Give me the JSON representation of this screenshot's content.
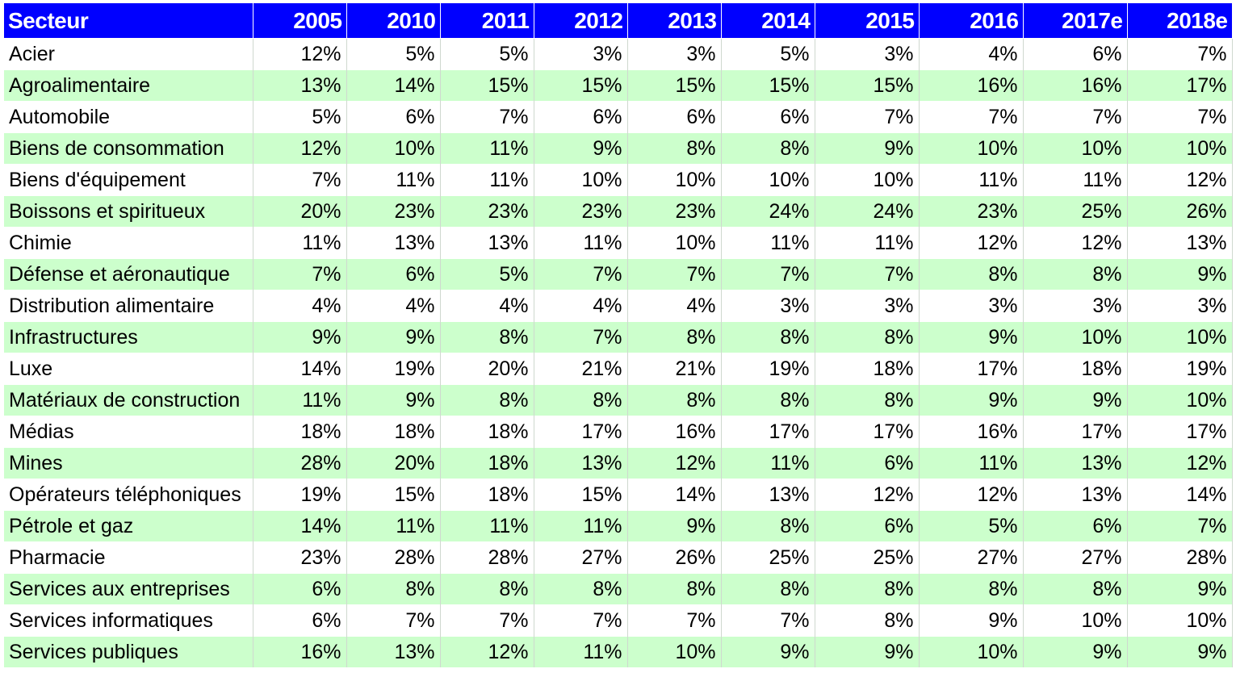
{
  "chart_data": {
    "type": "table",
    "columns": [
      "Secteur",
      "2005",
      "2010",
      "2011",
      "2012",
      "2013",
      "2014",
      "2015",
      "2016",
      "2017e",
      "2018e"
    ],
    "rows": [
      {
        "sector": "Acier",
        "values": [
          "12%",
          "5%",
          "5%",
          "3%",
          "3%",
          "5%",
          "3%",
          "4%",
          "6%",
          "7%"
        ]
      },
      {
        "sector": "Agroalimentaire",
        "values": [
          "13%",
          "14%",
          "15%",
          "15%",
          "15%",
          "15%",
          "15%",
          "16%",
          "16%",
          "17%"
        ]
      },
      {
        "sector": "Automobile",
        "values": [
          "5%",
          "6%",
          "7%",
          "6%",
          "6%",
          "6%",
          "7%",
          "7%",
          "7%",
          "7%"
        ]
      },
      {
        "sector": "Biens de consommation",
        "values": [
          "12%",
          "10%",
          "11%",
          "9%",
          "8%",
          "8%",
          "9%",
          "10%",
          "10%",
          "10%"
        ]
      },
      {
        "sector": "Biens d'équipement",
        "values": [
          "7%",
          "11%",
          "11%",
          "10%",
          "10%",
          "10%",
          "10%",
          "11%",
          "11%",
          "12%"
        ]
      },
      {
        "sector": "Boissons et spiritueux",
        "values": [
          "20%",
          "23%",
          "23%",
          "23%",
          "23%",
          "24%",
          "24%",
          "23%",
          "25%",
          "26%"
        ]
      },
      {
        "sector": "Chimie",
        "values": [
          "11%",
          "13%",
          "13%",
          "11%",
          "10%",
          "11%",
          "11%",
          "12%",
          "12%",
          "13%"
        ]
      },
      {
        "sector": "Défense et aéronautique",
        "values": [
          "7%",
          "6%",
          "5%",
          "7%",
          "7%",
          "7%",
          "7%",
          "8%",
          "8%",
          "9%"
        ]
      },
      {
        "sector": "Distribution alimentaire",
        "values": [
          "4%",
          "4%",
          "4%",
          "4%",
          "4%",
          "3%",
          "3%",
          "3%",
          "3%",
          "3%"
        ]
      },
      {
        "sector": "Infrastructures",
        "values": [
          "9%",
          "9%",
          "8%",
          "7%",
          "8%",
          "8%",
          "8%",
          "9%",
          "10%",
          "10%"
        ]
      },
      {
        "sector": "Luxe",
        "values": [
          "14%",
          "19%",
          "20%",
          "21%",
          "21%",
          "19%",
          "18%",
          "17%",
          "18%",
          "19%"
        ]
      },
      {
        "sector": "Matériaux de construction",
        "values": [
          "11%",
          "9%",
          "8%",
          "8%",
          "8%",
          "8%",
          "8%",
          "9%",
          "9%",
          "10%"
        ]
      },
      {
        "sector": "Médias",
        "values": [
          "18%",
          "18%",
          "18%",
          "17%",
          "16%",
          "17%",
          "17%",
          "16%",
          "17%",
          "17%"
        ]
      },
      {
        "sector": "Mines",
        "values": [
          "28%",
          "20%",
          "18%",
          "13%",
          "12%",
          "11%",
          "6%",
          "11%",
          "13%",
          "12%"
        ]
      },
      {
        "sector": "Opérateurs téléphoniques",
        "values": [
          "19%",
          "15%",
          "18%",
          "15%",
          "14%",
          "13%",
          "12%",
          "12%",
          "13%",
          "14%"
        ]
      },
      {
        "sector": "Pétrole et gaz",
        "values": [
          "14%",
          "11%",
          "11%",
          "11%",
          "9%",
          "8%",
          "6%",
          "5%",
          "6%",
          "7%"
        ]
      },
      {
        "sector": "Pharmacie",
        "values": [
          "23%",
          "28%",
          "28%",
          "27%",
          "26%",
          "25%",
          "25%",
          "27%",
          "27%",
          "28%"
        ]
      },
      {
        "sector": "Services aux entreprises",
        "values": [
          "6%",
          "8%",
          "8%",
          "8%",
          "8%",
          "8%",
          "8%",
          "8%",
          "8%",
          "9%"
        ]
      },
      {
        "sector": "Services informatiques",
        "values": [
          "6%",
          "7%",
          "7%",
          "7%",
          "7%",
          "7%",
          "8%",
          "9%",
          "10%",
          "10%"
        ]
      },
      {
        "sector": "Services publiques",
        "values": [
          "16%",
          "13%",
          "12%",
          "11%",
          "10%",
          "9%",
          "9%",
          "10%",
          "9%",
          "9%"
        ]
      }
    ]
  },
  "colors": {
    "header_background": "#0000ff",
    "header_text": "#ffffff",
    "band_light": "#ffffff",
    "band_green": "#ccffcc"
  }
}
